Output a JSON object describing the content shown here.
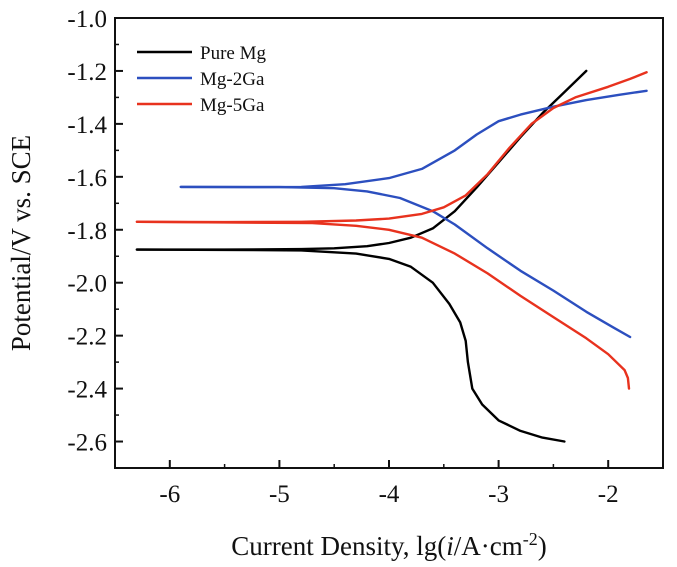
{
  "chart_data": {
    "type": "line",
    "title": "",
    "xlabel": {
      "prefix": "Current Density, lg(",
      "italic": "i",
      "middle": "/A·cm",
      "superscript": "-2",
      "suffix": ")"
    },
    "ylabel": "Potential/V vs. SCE",
    "xlim": [
      -6.5,
      -1.5
    ],
    "ylim": [
      -2.7,
      -1.0
    ],
    "xticks": [
      -6,
      -5,
      -4,
      -3,
      -2
    ],
    "xtick_labels": [
      "-6",
      "-5",
      "-4",
      "-3",
      "-2"
    ],
    "yticks": [
      -1.0,
      -1.2,
      -1.4,
      -1.6,
      -1.8,
      -2.0,
      -2.2,
      -2.4,
      -2.6
    ],
    "ytick_labels": [
      "-1.0",
      "-1.2",
      "-1.4",
      "-1.6",
      "-1.8",
      "-2.0",
      "-2.2",
      "-2.4",
      "-2.6"
    ],
    "grid": false,
    "legend_position": "top-left",
    "series": [
      {
        "name": "Pure Mg",
        "color": "#000000",
        "anodic": [
          [
            -6.3,
            -1.875
          ],
          [
            -5.5,
            -1.875
          ],
          [
            -4.8,
            -1.873
          ],
          [
            -4.5,
            -1.87
          ],
          [
            -4.2,
            -1.862
          ],
          [
            -4.0,
            -1.85
          ],
          [
            -3.8,
            -1.83
          ],
          [
            -3.6,
            -1.795
          ],
          [
            -3.4,
            -1.73
          ],
          [
            -3.2,
            -1.64
          ],
          [
            -3.0,
            -1.545
          ],
          [
            -2.8,
            -1.45
          ],
          [
            -2.6,
            -1.36
          ],
          [
            -2.4,
            -1.28
          ],
          [
            -2.2,
            -1.2
          ]
        ],
        "cathodic": [
          [
            -6.3,
            -1.875
          ],
          [
            -5.5,
            -1.876
          ],
          [
            -4.8,
            -1.878
          ],
          [
            -4.3,
            -1.89
          ],
          [
            -4.0,
            -1.91
          ],
          [
            -3.8,
            -1.94
          ],
          [
            -3.6,
            -2.0
          ],
          [
            -3.45,
            -2.08
          ],
          [
            -3.35,
            -2.15
          ],
          [
            -3.3,
            -2.22
          ],
          [
            -3.28,
            -2.3
          ],
          [
            -3.24,
            -2.4
          ],
          [
            -3.15,
            -2.46
          ],
          [
            -3.0,
            -2.52
          ],
          [
            -2.8,
            -2.56
          ],
          [
            -2.6,
            -2.585
          ],
          [
            -2.4,
            -2.6
          ]
        ]
      },
      {
        "name": "Mg-2Ga",
        "color": "#2c4fbf",
        "anodic": [
          [
            -5.9,
            -1.638
          ],
          [
            -5.3,
            -1.639
          ],
          [
            -4.8,
            -1.638
          ],
          [
            -4.4,
            -1.628
          ],
          [
            -4.0,
            -1.605
          ],
          [
            -3.7,
            -1.57
          ],
          [
            -3.4,
            -1.5
          ],
          [
            -3.2,
            -1.44
          ],
          [
            -3.0,
            -1.39
          ],
          [
            -2.8,
            -1.365
          ],
          [
            -2.5,
            -1.335
          ],
          [
            -2.2,
            -1.31
          ],
          [
            -1.9,
            -1.29
          ],
          [
            -1.65,
            -1.275
          ]
        ],
        "cathodic": [
          [
            -5.9,
            -1.638
          ],
          [
            -5.0,
            -1.639
          ],
          [
            -4.5,
            -1.643
          ],
          [
            -4.2,
            -1.655
          ],
          [
            -3.9,
            -1.68
          ],
          [
            -3.6,
            -1.73
          ],
          [
            -3.4,
            -1.78
          ],
          [
            -3.1,
            -1.87
          ],
          [
            -2.8,
            -1.955
          ],
          [
            -2.5,
            -2.03
          ],
          [
            -2.2,
            -2.11
          ],
          [
            -1.95,
            -2.17
          ],
          [
            -1.8,
            -2.205
          ]
        ]
      },
      {
        "name": "Mg-5Ga",
        "color": "#e8321e",
        "anodic": [
          [
            -6.3,
            -1.77
          ],
          [
            -5.5,
            -1.771
          ],
          [
            -4.8,
            -1.77
          ],
          [
            -4.3,
            -1.765
          ],
          [
            -4.0,
            -1.758
          ],
          [
            -3.7,
            -1.74
          ],
          [
            -3.5,
            -1.715
          ],
          [
            -3.3,
            -1.67
          ],
          [
            -3.1,
            -1.59
          ],
          [
            -2.9,
            -1.49
          ],
          [
            -2.7,
            -1.4
          ],
          [
            -2.5,
            -1.34
          ],
          [
            -2.3,
            -1.3
          ],
          [
            -2.0,
            -1.26
          ],
          [
            -1.8,
            -1.23
          ],
          [
            -1.65,
            -1.205
          ]
        ],
        "cathodic": [
          [
            -6.3,
            -1.77
          ],
          [
            -5.5,
            -1.772
          ],
          [
            -4.7,
            -1.775
          ],
          [
            -4.3,
            -1.785
          ],
          [
            -4.0,
            -1.8
          ],
          [
            -3.7,
            -1.83
          ],
          [
            -3.4,
            -1.89
          ],
          [
            -3.1,
            -1.965
          ],
          [
            -2.8,
            -2.05
          ],
          [
            -2.5,
            -2.13
          ],
          [
            -2.2,
            -2.21
          ],
          [
            -2.0,
            -2.27
          ],
          [
            -1.85,
            -2.33
          ],
          [
            -1.82,
            -2.36
          ],
          [
            -1.81,
            -2.4
          ]
        ]
      }
    ]
  }
}
